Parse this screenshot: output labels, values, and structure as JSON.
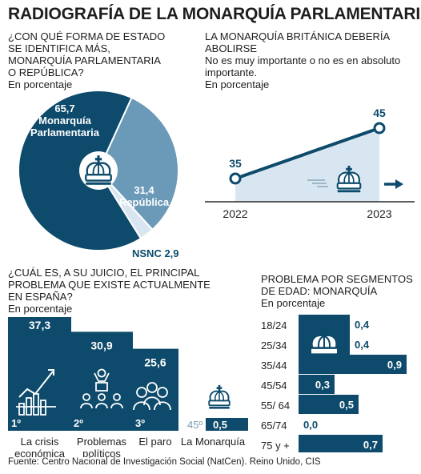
{
  "title": "RADIOGRAFÍA DE LA MONARQUÍA PARLAMENTARIA",
  "colors": {
    "dark": "#0d4a6b",
    "mid": "#6a9ab8",
    "light": "#d7e6f1",
    "text": "#1e1e1e"
  },
  "icons": [
    "crown-icon",
    "chart-growth-icon",
    "speaker-crowd-icon",
    "unemployed-people-icon",
    "arrow-right-icon",
    "motion-lines-icon"
  ],
  "source": "Fuente: Centro Nacional de Investigación Social (NatCen). Reino Unido, CIS",
  "pie": {
    "question_lines": [
      "¿CON QUÉ FORMA DE ESTADO",
      "SE IDENTIFICA MÁS,",
      "MONARQUÍA PARLAMENTARIA",
      "O REPÚBLICA?"
    ],
    "unit": "En porcentaje",
    "label_mon_value": "65,7",
    "label_mon_lines": [
      "Monarquía",
      "Parlamentaria"
    ],
    "label_rep_value": "31,4",
    "label_rep_name": "República",
    "label_nsnc": "NSNC 2,9"
  },
  "trend": {
    "question_lines": [
      "LA MONARQUÍA BRITÁNICA DEBERÍA",
      "ABOLIRSE"
    ],
    "sub_lines": [
      "No es muy importante o no es en absoluto",
      "importante."
    ],
    "unit": "En porcentaje"
  },
  "problem": {
    "question_lines": [
      "¿CUÁL ES, A SU JUICIO, EL PRINCIPAL",
      "PROBLEMA QUE EXISTE ACTUALMENTE",
      "EN ESPAÑA?"
    ],
    "unit": "En porcentaje"
  },
  "age": {
    "question_lines": [
      "PROBLEMA POR SEGMENTOS",
      "DE EDAD: MONARQUÍA"
    ],
    "unit": "En porcentaje"
  },
  "chart_data": [
    {
      "type": "pie",
      "title": "¿Con qué forma de estado se identifica más, monarquía parlamentaria o república?",
      "categories": [
        "Monarquía Parlamentaria",
        "República",
        "NSNC"
      ],
      "values": [
        65.7,
        31.4,
        2.9
      ]
    },
    {
      "type": "line",
      "title": "La monarquía británica debería abolirse",
      "x": [
        "2022",
        "2023"
      ],
      "series": [
        {
          "values": [
            35,
            45
          ]
        }
      ],
      "value_labels": [
        "35",
        "45"
      ]
    },
    {
      "type": "bar",
      "title": "¿Cuál es, a su juicio, el principal problema que existe actualmente en España?",
      "categories": [
        [
          "La crisis",
          "económica"
        ],
        [
          "Problemas",
          "políticos"
        ],
        [
          "El paro"
        ],
        [
          "La Monarquía"
        ]
      ],
      "values": [
        37.3,
        30.9,
        25.6,
        0.5
      ],
      "value_labels": [
        "37,3",
        "30,9",
        "25,6",
        "0,5"
      ],
      "ranks": [
        "1º",
        "2º",
        "3º",
        "45º"
      ]
    },
    {
      "type": "bar",
      "orientation": "horizontal",
      "title": "Problema por segmentos de edad: Monarquía",
      "categories": [
        "18/24",
        "25/34",
        "35/44",
        "45/54",
        "55/ 64",
        "65/74",
        "75 y +"
      ],
      "values": [
        0.4,
        0.4,
        0.9,
        0.3,
        0.5,
        0.0,
        0.7
      ],
      "value_labels": [
        "0,4",
        "0,4",
        "0,9",
        "0,3",
        "0,5",
        "0,0",
        "0,7"
      ]
    }
  ]
}
